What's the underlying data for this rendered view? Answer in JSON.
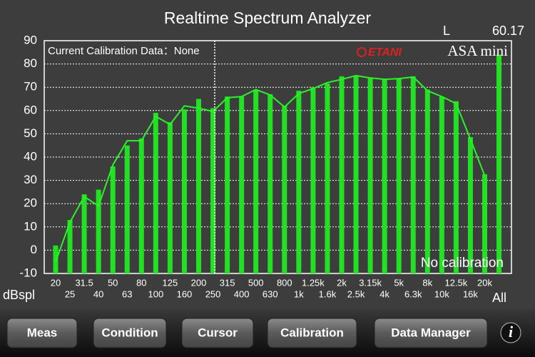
{
  "app": {
    "title": "Realtime Spectrum Analyzer",
    "channel": "L",
    "overall_level": "60.17",
    "calibration_info": "Current Calibration Data：None",
    "logo_brand": "ETANI",
    "logo_product": "ASA mini",
    "calibration_status": "No calibration",
    "y_unit": "dBspl"
  },
  "chart_data": {
    "type": "bar",
    "categories": [
      "20",
      "25",
      "31.5",
      "40",
      "50",
      "63",
      "80",
      "100",
      "125",
      "160",
      "200",
      "250",
      "315",
      "400",
      "500",
      "630",
      "800",
      "1k",
      "1.25k",
      "1.6k",
      "2k",
      "2.5k",
      "3.15k",
      "4k",
      "5k",
      "6.3k",
      "8k",
      "10k",
      "12.5k",
      "16k",
      "20k",
      "All"
    ],
    "series": [
      {
        "type": "bar",
        "color": "#22e022",
        "values": [
          2,
          13,
          24,
          26,
          36,
          45,
          48,
          59,
          55,
          60.5,
          65,
          61,
          66,
          66,
          69,
          67,
          62,
          68.5,
          70,
          71.6,
          74.7,
          75,
          74,
          73.7,
          73.7,
          74.7,
          69,
          66,
          64,
          48.6,
          32.6,
          84
        ]
      },
      {
        "type": "line",
        "color": "#2cf02c",
        "values": [
          -5,
          12,
          23,
          19,
          36.6,
          47,
          47,
          57.5,
          54,
          62,
          61,
          59.6,
          65.5,
          66,
          69,
          66.7,
          61.5,
          67.3,
          69.4,
          72,
          73.4,
          75,
          74,
          73.4,
          73.7,
          74.4,
          68.5,
          66,
          63,
          47.7,
          32,
          null
        ]
      }
    ],
    "ylim": [
      -10,
      90
    ],
    "yticks": [
      -10,
      0,
      10,
      20,
      30,
      40,
      50,
      60,
      70,
      80,
      90
    ],
    "grid": true
  },
  "toolbar": {
    "buttons": [
      "Meas",
      "Condition",
      "Cursor",
      "Calibration",
      "Data Manager"
    ],
    "info": "i"
  }
}
